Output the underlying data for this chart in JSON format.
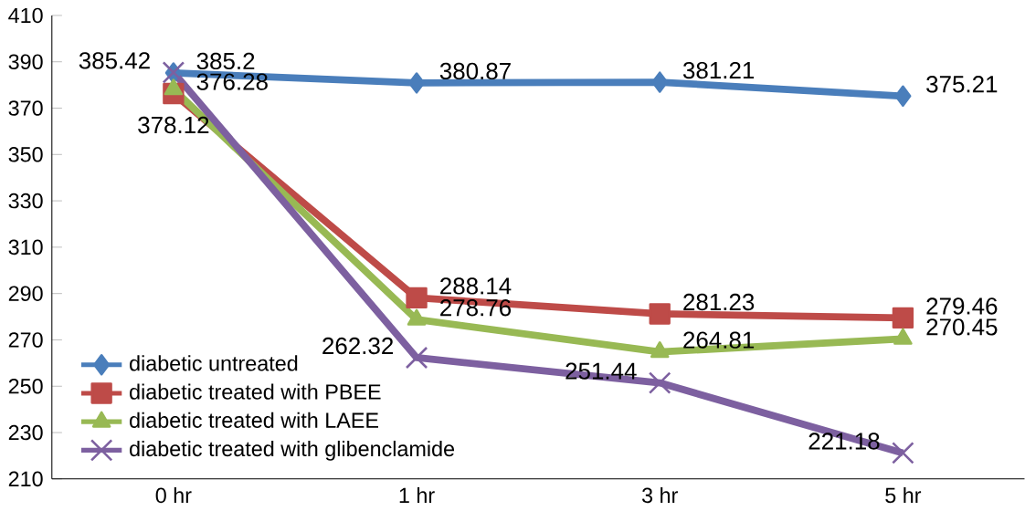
{
  "chart_data": {
    "type": "line",
    "categories": [
      "0 hr",
      "1 hr",
      "3 hr",
      "5 hr"
    ],
    "series": [
      {
        "name": "diabetic untreated",
        "color": "#4a7ebb",
        "marker": "diamond",
        "values": [
          385.2,
          380.87,
          381.21,
          375.21
        ]
      },
      {
        "name": "diabetic treated with PBEE",
        "color": "#be4b48",
        "marker": "square",
        "values": [
          376.28,
          288.14,
          281.23,
          279.46
        ]
      },
      {
        "name": "diabetic treated with LAEE",
        "color": "#98b954",
        "marker": "triangle",
        "values": [
          378.12,
          278.76,
          264.81,
          270.45
        ]
      },
      {
        "name": "diabetic treated with glibenclamide",
        "color": "#7d60a0",
        "marker": "cross",
        "values": [
          385.42,
          262.32,
          251.44,
          221.18
        ]
      }
    ],
    "ylim": [
      210,
      410
    ],
    "yticks": [
      210,
      230,
      250,
      270,
      290,
      310,
      330,
      350,
      370,
      390,
      410
    ],
    "data_labels": true,
    "grid": false,
    "legend": "bottom left",
    "line_style": "solid"
  }
}
